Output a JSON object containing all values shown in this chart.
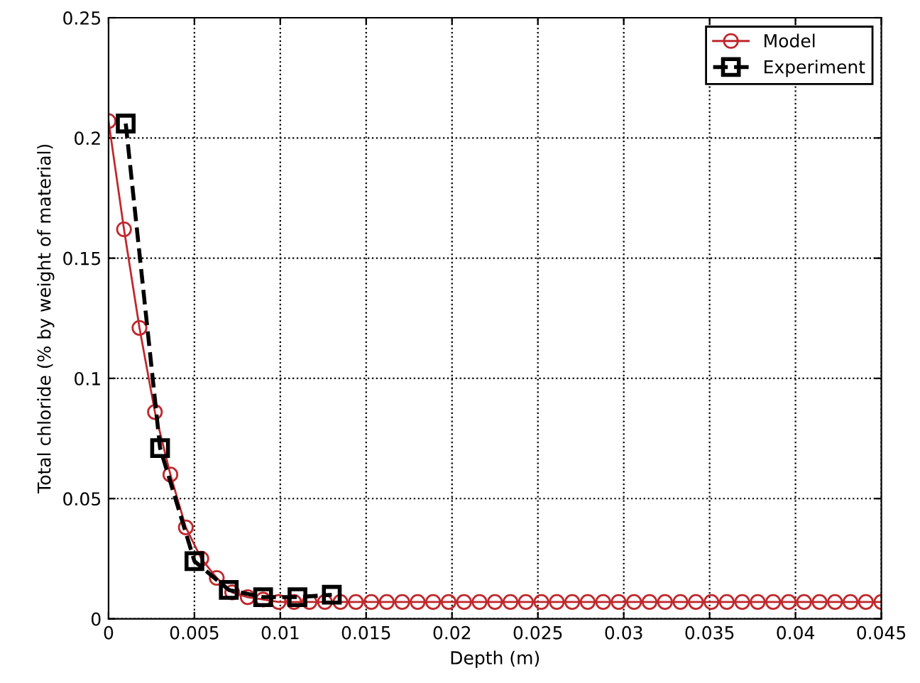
{
  "chart_data": {
    "type": "line",
    "xlabel": "Depth (m)",
    "ylabel": "Total chloride (% by weight of material)",
    "xlim": [
      0,
      0.045
    ],
    "ylim": [
      0,
      0.25
    ],
    "xticks": [
      0,
      0.005,
      0.01,
      0.015,
      0.02,
      0.025,
      0.03,
      0.035,
      0.04,
      0.045
    ],
    "yticks": [
      0,
      0.05,
      0.1,
      0.15,
      0.2,
      0.25
    ],
    "grid": true,
    "legend": "top right",
    "series": [
      {
        "name": "Model",
        "color": "#c0282d",
        "marker": "circle",
        "line_style": "solid",
        "x": [
          0,
          0.0009,
          0.0018,
          0.0027,
          0.0036,
          0.0045,
          0.0054,
          0.0063,
          0.0072,
          0.0081,
          0.009,
          0.0099,
          0.0108,
          0.0117,
          0.0126,
          0.0135,
          0.0144,
          0.0153,
          0.0162,
          0.0171,
          0.018,
          0.0189,
          0.0198,
          0.0207,
          0.0216,
          0.0225,
          0.0234,
          0.0243,
          0.0252,
          0.0261,
          0.027,
          0.0279,
          0.0288,
          0.0297,
          0.0306,
          0.0315,
          0.0324,
          0.0333,
          0.0342,
          0.0351,
          0.036,
          0.0369,
          0.0378,
          0.0387,
          0.0396,
          0.0405,
          0.0414,
          0.0423,
          0.0432,
          0.0441,
          0.045
        ],
        "values": [
          0.207,
          0.162,
          0.121,
          0.086,
          0.06,
          0.038,
          0.025,
          0.017,
          0.011,
          0.009,
          0.008,
          0.007,
          0.007,
          0.007,
          0.007,
          0.007,
          0.007,
          0.007,
          0.007,
          0.007,
          0.007,
          0.007,
          0.007,
          0.007,
          0.007,
          0.007,
          0.007,
          0.007,
          0.007,
          0.007,
          0.007,
          0.007,
          0.007,
          0.007,
          0.007,
          0.007,
          0.007,
          0.007,
          0.007,
          0.007,
          0.007,
          0.007,
          0.007,
          0.007,
          0.007,
          0.007,
          0.007,
          0.007,
          0.007,
          0.007,
          0.007
        ]
      },
      {
        "name": "Experiment",
        "color": "#000000",
        "marker": "square",
        "line_style": "dashed",
        "x": [
          0.001,
          0.003,
          0.005,
          0.007,
          0.009,
          0.011,
          0.013
        ],
        "values": [
          0.206,
          0.071,
          0.024,
          0.012,
          0.009,
          0.009,
          0.01
        ]
      }
    ]
  }
}
